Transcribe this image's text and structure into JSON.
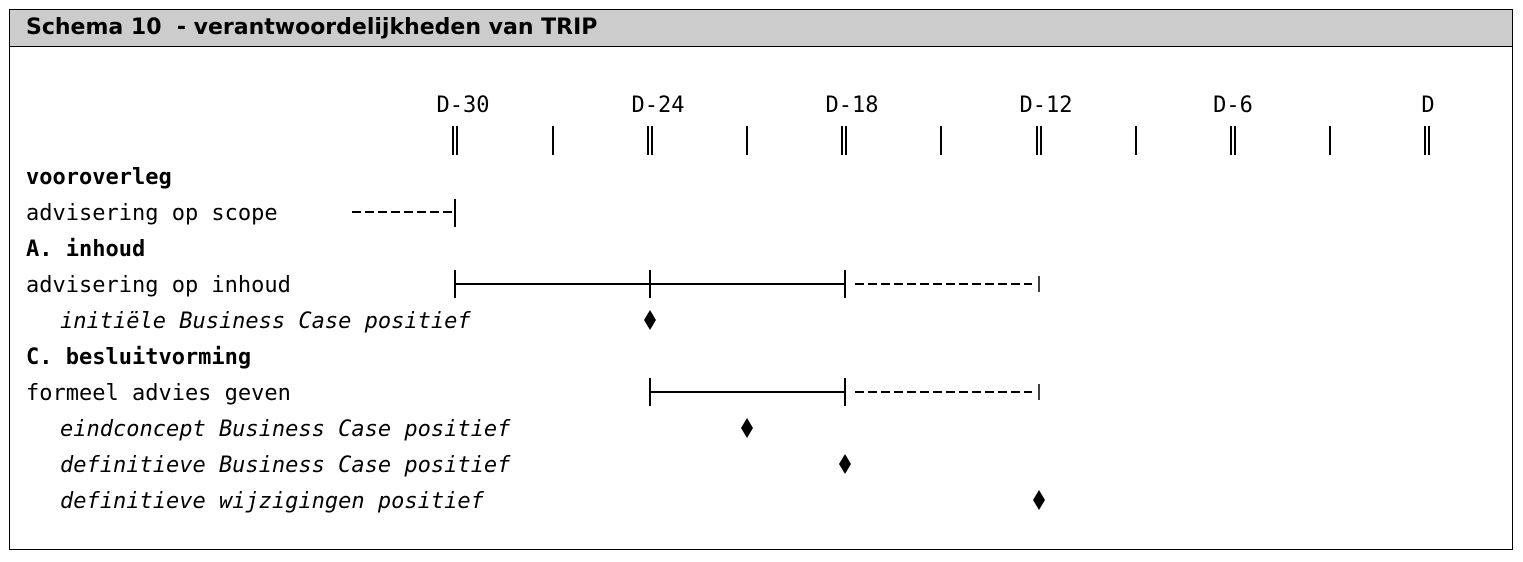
{
  "title": "Schema 10  - verantwoordelijkheden van TRIP",
  "timeline": {
    "labels": [
      "D-30",
      "D-24",
      "D-18",
      "D-12",
      "D-6",
      "D"
    ]
  },
  "rows": {
    "vooroverleg": "vooroverleg",
    "advisering_scope": "advisering op scope",
    "a_inhoud": "A. inhoud",
    "advisering_inhoud": "advisering op inhoud",
    "initiele_bc": "initiële Business Case positief",
    "c_besluitvorming": "C. besluitvorming",
    "formeel_advies": "formeel advies geven",
    "eindconcept_bc": "eindconcept Business Case positief",
    "definitieve_bc": "definitieve Business Case positief",
    "definitieve_wijz": "definitieve wijzigingen positief"
  }
}
